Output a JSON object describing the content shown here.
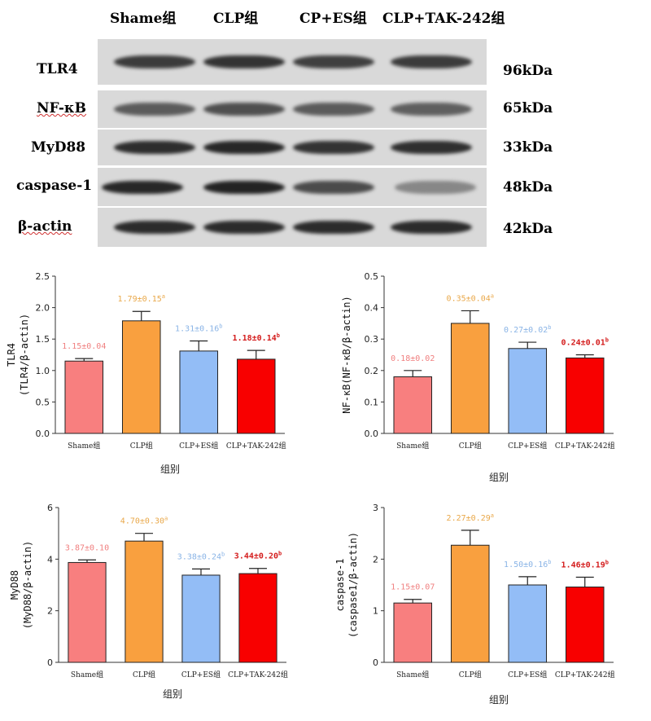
{
  "western_blot": {
    "groups": [
      "Shame组",
      "CLP组",
      "CP+ES组",
      "CLP+TAK-242组"
    ],
    "rows": [
      {
        "protein": "TLR4",
        "size": "96kDa",
        "band_intensity": [
          0.78,
          0.82,
          0.76,
          0.78
        ]
      },
      {
        "protein": "NF-κB",
        "size": "65kDa",
        "band_intensity": [
          0.62,
          0.68,
          0.62,
          0.6
        ]
      },
      {
        "protein": "MyD88",
        "size": "33kDa",
        "band_intensity": [
          0.85,
          0.88,
          0.82,
          0.84
        ]
      },
      {
        "protein": "caspase-1",
        "size": "48kDa",
        "band_intensity": [
          0.88,
          0.9,
          0.7,
          0.4
        ]
      },
      {
        "protein": "β-actin",
        "size": "42kDa",
        "band_intensity": [
          0.86,
          0.86,
          0.86,
          0.86
        ]
      }
    ]
  },
  "colors": {
    "Shame组": "#f87f7f",
    "CLP组": "#f9a03f",
    "CP+ES组": "#93bdf6",
    "CLP+TAK-242组": "#f80000"
  },
  "label_colors": {
    "Shame组": "#f07f7f",
    "CLP组": "#e9a84a",
    "CP+ES组": "#8ab4e6",
    "CLP+TAK-242组": "#d41c1c"
  },
  "chart_data": [
    {
      "type": "bar",
      "categories": [
        "Shame组",
        "CLP组",
        "CLP+ES组",
        "CLP+TAK-242组"
      ],
      "values": [
        1.15,
        1.79,
        1.31,
        1.18
      ],
      "errors": [
        0.04,
        0.15,
        0.16,
        0.14
      ],
      "value_labels": [
        "1.15±0.04",
        "1.79±0.15",
        "1.31±0.16",
        "1.18±0.14"
      ],
      "superscripts": [
        "",
        "a",
        "b",
        "b"
      ],
      "ylabel_line1": "TLR4",
      "ylabel_line2": "(TLR4/β-actin)",
      "xlabel": "组别",
      "ylim": [
        0,
        2.5
      ],
      "yticks": [
        "0.0",
        "0.5",
        "1.0",
        "1.5",
        "2.0",
        "2.5"
      ]
    },
    {
      "type": "bar",
      "categories": [
        "Shame组",
        "CLP组",
        "CLP+ES组",
        "CLP+TAK-242组"
      ],
      "values": [
        0.18,
        0.35,
        0.27,
        0.24
      ],
      "errors": [
        0.02,
        0.04,
        0.02,
        0.01
      ],
      "value_labels": [
        "0.18±0.02",
        "0.35±0.04",
        "0.27±0.02",
        "0.24±0.01"
      ],
      "superscripts": [
        "",
        "a",
        "b",
        "b"
      ],
      "ylabel_line1": "NF-κB(NF-κB/β-actin)",
      "ylabel_line2": "",
      "xlabel": "组别",
      "ylim": [
        0,
        0.5
      ],
      "yticks": [
        "0.0",
        "0.1",
        "0.2",
        "0.3",
        "0.4",
        "0.5"
      ]
    },
    {
      "type": "bar",
      "categories": [
        "Shame组",
        "CLP组",
        "CLP+ES组",
        "CLP+TAK-242组"
      ],
      "values": [
        3.87,
        4.7,
        3.38,
        3.44
      ],
      "errors": [
        0.1,
        0.3,
        0.24,
        0.2
      ],
      "value_labels": [
        "3.87±0.10",
        "4.70±0.30",
        "3.38±0.24",
        "3.44±0.20"
      ],
      "superscripts": [
        "",
        "a",
        "b",
        "b"
      ],
      "ylabel_line1": "MyD88",
      "ylabel_line2": "(MyD88/β-actin)",
      "xlabel": "组别",
      "ylim": [
        0,
        6
      ],
      "yticks": [
        "0",
        "2",
        "4",
        "6"
      ]
    },
    {
      "type": "bar",
      "categories": [
        "Shame组",
        "CLP组",
        "CLP+ES组",
        "CLP+TAK-242组"
      ],
      "values": [
        1.15,
        2.27,
        1.5,
        1.46
      ],
      "errors": [
        0.07,
        0.29,
        0.16,
        0.19
      ],
      "value_labels": [
        "1.15±0.07",
        "2.27±0.29",
        "1.50±0.16",
        "1.46±0.19"
      ],
      "superscripts": [
        "",
        "a",
        "b",
        "b"
      ],
      "ylabel_line1": "caspase-1",
      "ylabel_line2": "(caspase1/β-actin)",
      "xlabel": "组别",
      "ylim": [
        0,
        3
      ],
      "yticks": [
        "0",
        "1",
        "2",
        "3"
      ]
    }
  ]
}
